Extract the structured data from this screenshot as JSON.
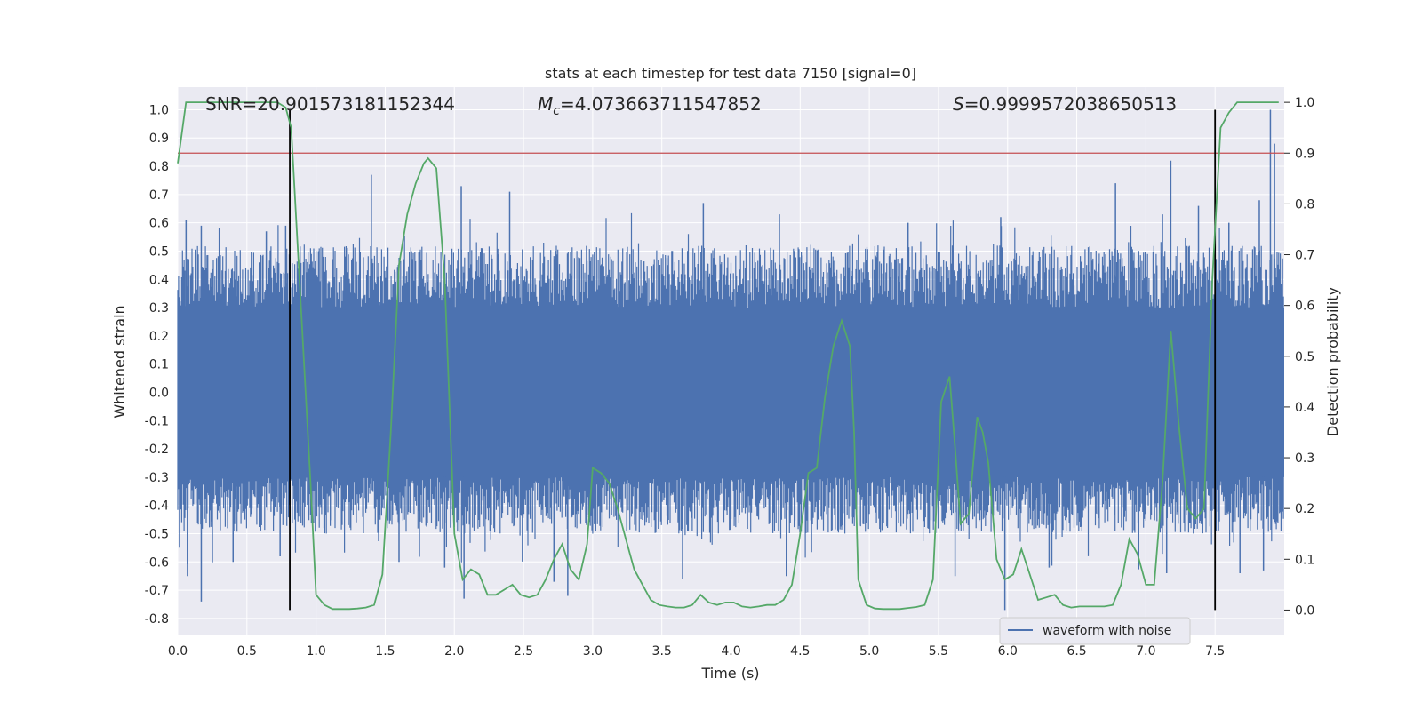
{
  "chart_data": {
    "type": "line",
    "title": "stats at each timestep for test data 7150 [signal=0]",
    "xlabel": "Time (s)",
    "ylabel_left": "Whitened strain",
    "ylabel_right": "Detection probability",
    "xlim": [
      0.0,
      8.0
    ],
    "ylim_left": [
      -0.86,
      1.08
    ],
    "ylim_right": [
      -0.05,
      1.03
    ],
    "x_ticks": [
      "0.0",
      "0.5",
      "1.0",
      "1.5",
      "2.0",
      "2.5",
      "3.0",
      "3.5",
      "4.0",
      "4.5",
      "5.0",
      "5.5",
      "6.0",
      "6.5",
      "7.0",
      "7.5"
    ],
    "y_left_ticks": [
      "-0.8",
      "-0.7",
      "-0.6",
      "-0.5",
      "-0.4",
      "-0.3",
      "-0.2",
      "-0.1",
      "0.0",
      "0.1",
      "0.2",
      "0.3",
      "0.4",
      "0.5",
      "0.6",
      "0.7",
      "0.8",
      "0.9",
      "1.0"
    ],
    "y_right_ticks": [
      "0.0",
      "0.1",
      "0.2",
      "0.3",
      "0.4",
      "0.5",
      "0.6",
      "0.7",
      "0.8",
      "0.9",
      "1.0"
    ],
    "annotations": {
      "snr": "SNR=20.901573181152344",
      "mc_symbol": "M",
      "mc_sub": "c",
      "mc_value": "=4.073663711547852",
      "s_symbol": "S",
      "s_value": "=0.9999572038650513"
    },
    "grid": true,
    "legend": {
      "label": "waveform with noise",
      "position": "lower-right"
    },
    "threshold": {
      "value_right_axis": 0.9,
      "color": "#c44e52"
    },
    "vlines_seconds": [
      0.81,
      7.5
    ],
    "vline_color": "#000000",
    "colors": {
      "strain": "#4c72b0",
      "probability": "#55a868",
      "background": "#eaeaf2"
    },
    "series": [
      {
        "name": "waveform with noise",
        "axis": "left",
        "envelope_seconds": [
          0.0,
          8.0
        ],
        "spikes_up": [
          [
            0.06,
            0.61
          ],
          [
            0.17,
            0.59
          ],
          [
            0.3,
            0.58
          ],
          [
            0.64,
            0.57
          ],
          [
            0.78,
            0.59
          ],
          [
            1.4,
            0.77
          ],
          [
            2.05,
            0.73
          ],
          [
            2.4,
            0.71
          ],
          [
            3.8,
            0.67
          ],
          [
            4.35,
            0.63
          ],
          [
            5.28,
            0.6
          ],
          [
            5.95,
            0.62
          ],
          [
            6.78,
            0.74
          ],
          [
            7.12,
            0.63
          ],
          [
            7.18,
            0.82
          ],
          [
            7.38,
            0.66
          ],
          [
            7.6,
            0.6
          ],
          [
            7.82,
            0.68
          ],
          [
            7.9,
            1.0
          ],
          [
            7.93,
            0.88
          ]
        ],
        "spikes_down": [
          [
            0.07,
            -0.65
          ],
          [
            0.17,
            -0.74
          ],
          [
            0.4,
            -0.6
          ],
          [
            0.74,
            -0.58
          ],
          [
            1.6,
            -0.6
          ],
          [
            1.93,
            -0.62
          ],
          [
            2.07,
            -0.73
          ],
          [
            2.72,
            -0.67
          ],
          [
            2.82,
            -0.72
          ],
          [
            3.65,
            -0.66
          ],
          [
            4.4,
            -0.65
          ],
          [
            5.62,
            -0.65
          ],
          [
            5.98,
            -0.77
          ],
          [
            6.3,
            -0.62
          ],
          [
            7.15,
            -0.64
          ],
          [
            7.68,
            -0.64
          ],
          [
            7.85,
            -0.63
          ]
        ]
      },
      {
        "name": "",
        "axis": "right",
        "x": [
          0.0,
          0.06,
          0.12,
          0.18,
          0.24,
          0.3,
          0.36,
          0.42,
          0.48,
          0.54,
          0.6,
          0.66,
          0.72,
          0.78,
          0.82,
          0.9,
          0.96,
          1.0,
          1.06,
          1.12,
          1.18,
          1.24,
          1.3,
          1.36,
          1.42,
          1.48,
          1.54,
          1.6,
          1.66,
          1.72,
          1.78,
          1.81,
          1.87,
          1.93,
          2.0,
          2.06,
          2.12,
          2.18,
          2.24,
          2.3,
          2.36,
          2.42,
          2.48,
          2.54,
          2.6,
          2.66,
          2.72,
          2.78,
          2.84,
          2.9,
          2.96,
          3.0,
          3.06,
          3.12,
          3.18,
          3.24,
          3.3,
          3.36,
          3.42,
          3.48,
          3.54,
          3.6,
          3.66,
          3.72,
          3.78,
          3.84,
          3.9,
          3.96,
          4.02,
          4.08,
          4.14,
          4.2,
          4.26,
          4.32,
          4.38,
          4.44,
          4.5,
          4.56,
          4.62,
          4.68,
          4.74,
          4.8,
          4.86,
          4.89,
          4.92,
          4.98,
          5.04,
          5.1,
          5.16,
          5.22,
          5.28,
          5.34,
          5.4,
          5.46,
          5.52,
          5.58,
          5.62,
          5.66,
          5.72,
          5.78,
          5.82,
          5.86,
          5.92,
          5.98,
          6.04,
          6.1,
          6.16,
          6.22,
          6.28,
          6.34,
          6.4,
          6.46,
          6.52,
          6.58,
          6.64,
          6.7,
          6.76,
          6.82,
          6.88,
          6.94,
          7.0,
          7.06,
          7.12,
          7.18,
          7.24,
          7.3,
          7.36,
          7.42,
          7.48,
          7.54,
          7.6,
          7.66,
          7.72,
          7.78,
          7.84,
          7.9,
          7.96
        ],
        "y": [
          0.88,
          1.0,
          1.0,
          1.0,
          1.0,
          1.0,
          1.0,
          1.0,
          1.0,
          1.0,
          1.0,
          1.0,
          1.0,
          0.99,
          0.95,
          0.55,
          0.25,
          0.03,
          0.01,
          0.002,
          0.002,
          0.002,
          0.003,
          0.005,
          0.01,
          0.07,
          0.35,
          0.68,
          0.78,
          0.84,
          0.88,
          0.89,
          0.87,
          0.65,
          0.15,
          0.06,
          0.08,
          0.07,
          0.03,
          0.03,
          0.04,
          0.05,
          0.03,
          0.025,
          0.03,
          0.06,
          0.1,
          0.13,
          0.08,
          0.06,
          0.13,
          0.28,
          0.27,
          0.25,
          0.2,
          0.14,
          0.08,
          0.05,
          0.02,
          0.01,
          0.007,
          0.005,
          0.005,
          0.01,
          0.03,
          0.015,
          0.01,
          0.015,
          0.015,
          0.007,
          0.005,
          0.007,
          0.01,
          0.01,
          0.02,
          0.05,
          0.15,
          0.27,
          0.28,
          0.42,
          0.52,
          0.57,
          0.52,
          0.35,
          0.06,
          0.01,
          0.003,
          0.002,
          0.002,
          0.002,
          0.004,
          0.006,
          0.01,
          0.06,
          0.41,
          0.46,
          0.32,
          0.17,
          0.19,
          0.38,
          0.35,
          0.29,
          0.1,
          0.06,
          0.07,
          0.12,
          0.07,
          0.02,
          0.025,
          0.03,
          0.01,
          0.005,
          0.007,
          0.007,
          0.007,
          0.007,
          0.01,
          0.05,
          0.14,
          0.11,
          0.05,
          0.05,
          0.25,
          0.55,
          0.36,
          0.2,
          0.18,
          0.2,
          0.65,
          0.95,
          0.98,
          1.0,
          1.0,
          1.0,
          1.0,
          1.0,
          1.0
        ]
      }
    ]
  }
}
